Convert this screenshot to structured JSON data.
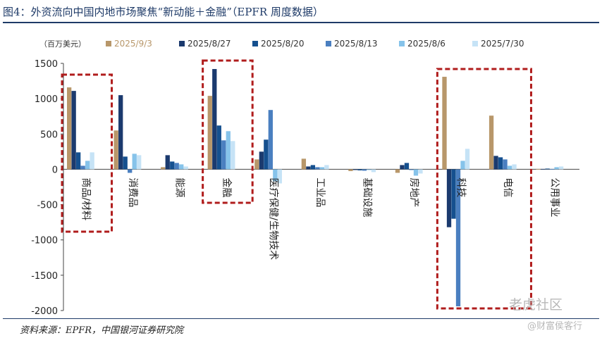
{
  "figure": {
    "title": "图4：外资流向中国内地市场聚焦“新动能＋金融”（EPFR 周度数据）",
    "source": "资料来源：EPFR，中国银河证券研究院",
    "watermark_main": "老虎社区",
    "watermark_sub": "@财富侯客行"
  },
  "chart_data": {
    "type": "bar",
    "unit_label": "（百万美元）",
    "ylim": [
      -2000,
      1500
    ],
    "yticks": [
      1500,
      1000,
      500,
      0,
      -500,
      -1000,
      -1500,
      -2000
    ],
    "legend_position": "top",
    "grid": false,
    "categories": [
      "商品/材料",
      "消费品",
      "能源",
      "金融",
      "医疗保健/生物技术",
      "工业品",
      "基础设施",
      "房地产",
      "科技",
      "电信",
      "公用事业"
    ],
    "series": [
      {
        "name": "2025/9/3",
        "color": "#b8976a",
        "values": [
          1160,
          550,
          30,
          1040,
          140,
          150,
          -25,
          -50,
          1310,
          760,
          5
        ]
      },
      {
        "name": "2025/8/27",
        "color": "#1b3a6e",
        "values": [
          1110,
          1050,
          200,
          1420,
          250,
          40,
          -10,
          60,
          -820,
          190,
          5
        ]
      },
      {
        "name": "2025/8/20",
        "color": "#15508f",
        "values": [
          240,
          180,
          110,
          620,
          420,
          60,
          -15,
          90,
          -700,
          170,
          10
        ]
      },
      {
        "name": "2025/8/13",
        "color": "#4a7fc0",
        "values": [
          50,
          -50,
          90,
          410,
          840,
          30,
          -20,
          -10,
          -1940,
          140,
          5
        ]
      },
      {
        "name": "2025/8/6",
        "color": "#86c3ea",
        "values": [
          120,
          220,
          70,
          540,
          -170,
          30,
          -10,
          -90,
          120,
          50,
          30
        ]
      },
      {
        "name": "2025/7/30",
        "color": "#c6e3f6",
        "values": [
          240,
          200,
          40,
          400,
          -200,
          60,
          -40,
          -60,
          290,
          70,
          40
        ]
      }
    ],
    "highlighted_categories": [
      "商品/材料",
      "金融",
      "科技"
    ],
    "highlight_color": "#b01c1c"
  }
}
